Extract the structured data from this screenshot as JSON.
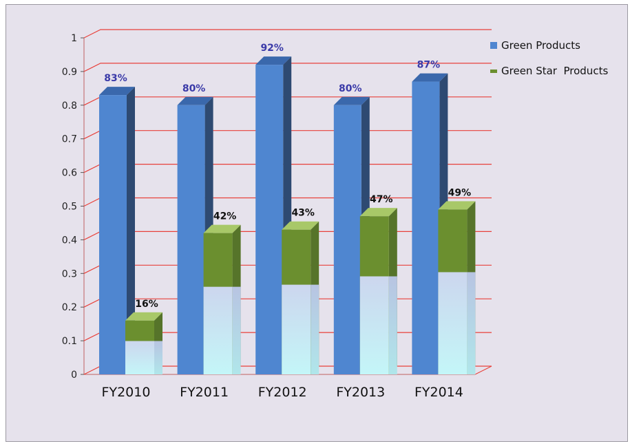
{
  "chart_data": {
    "type": "bar",
    "categories": [
      "FY2010",
      "FY2011",
      "FY2012",
      "FY2013",
      "FY2014"
    ],
    "series": [
      {
        "name": "Green Products",
        "values": [
          0.83,
          0.8,
          0.92,
          0.8,
          0.87
        ],
        "labels": [
          "83%",
          "80%",
          "92%",
          "80%",
          "87%"
        ],
        "color": "#4f86d0"
      },
      {
        "name": "Green Star  Products",
        "values": [
          0.16,
          0.42,
          0.43,
          0.47,
          0.49
        ],
        "labels": [
          "16%",
          "42%",
          "43%",
          "47%",
          "49%"
        ],
        "color": "#6b8f2f"
      }
    ],
    "yticks": [
      "0",
      "0.1",
      "0.2",
      "0.3",
      "0.4",
      "0.5",
      "0.6",
      "0.7",
      "0.8",
      "0.9",
      "1"
    ],
    "ylim": [
      0,
      1
    ],
    "grid": true,
    "grid_color": "#e8403a",
    "legend_position": "top-right",
    "style": "3d"
  }
}
